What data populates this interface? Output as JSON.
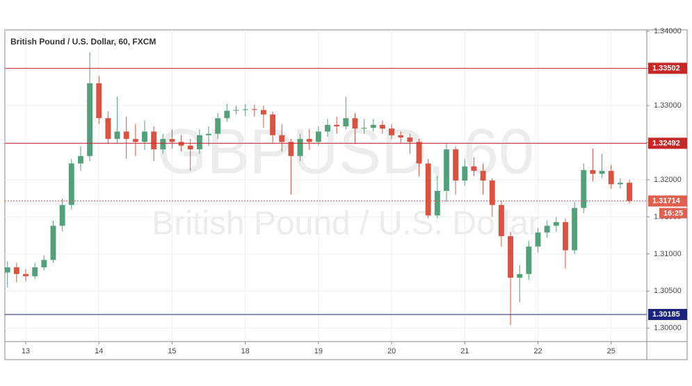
{
  "chart_data": {
    "type": "candlestick",
    "title": "British Pound / U.S. Dollar, 60, FXCM",
    "watermark": "GBPUSD, 60",
    "watermark_subtitle": "British Pound / U.S. Dollar",
    "grid": true,
    "xlim": [
      -6.85,
      203.7
    ],
    "xticks": [
      {
        "value": 0,
        "label": "13"
      },
      {
        "value": 24,
        "label": "14"
      },
      {
        "value": 48,
        "label": "15"
      },
      {
        "value": 72,
        "label": "18"
      },
      {
        "value": 96,
        "label": "19"
      },
      {
        "value": 120,
        "label": "20"
      },
      {
        "value": 144,
        "label": "21"
      },
      {
        "value": 168,
        "label": "22"
      },
      {
        "value": 192,
        "label": "25"
      }
    ],
    "ylim": [
      1.2982,
      1.3402
    ],
    "yticks": [
      {
        "value": 1.3,
        "label": "1.30000"
      },
      {
        "value": 1.305,
        "label": "1.30500"
      },
      {
        "value": 1.31,
        "label": "1.31000"
      },
      {
        "value": 1.315,
        "label": "1.31500"
      },
      {
        "value": 1.32,
        "label": "1.32000"
      },
      {
        "value": 1.325,
        "label": "1.32500"
      },
      {
        "value": 1.33,
        "label": "1.33000"
      },
      {
        "value": 1.335,
        "label": "1.33500"
      },
      {
        "value": 1.34,
        "label": "1.34000"
      }
    ],
    "levels": [
      {
        "value": 1.33502,
        "color": "#c62828"
      },
      {
        "value": 1.32492,
        "color": "#c62828"
      },
      {
        "value": 1.30185,
        "color": "#1a237e"
      }
    ],
    "current_price": {
      "value": 1.31714,
      "countdown": "16:25",
      "color": "#e06050"
    },
    "x": [
      -6,
      -3,
      0,
      3,
      6,
      9,
      12,
      15,
      18,
      21,
      24,
      27,
      30,
      33,
      36,
      39,
      42,
      45,
      48,
      51,
      54,
      57,
      60,
      63,
      66,
      69,
      72,
      75,
      78,
      81,
      84,
      87,
      90,
      93,
      96,
      99,
      102,
      105,
      108,
      111,
      114,
      117,
      120,
      123,
      126,
      129,
      132,
      135,
      138,
      141,
      144,
      147,
      150,
      153,
      156,
      159,
      162,
      165,
      168,
      171,
      174,
      177,
      180,
      183,
      186,
      189,
      192,
      195,
      198
    ],
    "series": [
      {
        "up_color": "#53a07a",
        "down_color": "#d75442",
        "open": [
          1.3075,
          1.3082,
          1.3073,
          1.307,
          1.3082,
          1.3092,
          1.3138,
          1.3166,
          1.3222,
          1.3232,
          1.333,
          1.3283,
          1.3255,
          1.3265,
          1.3255,
          1.3251,
          1.3265,
          1.3241,
          1.3255,
          1.3251,
          1.3246,
          1.3241,
          1.326,
          1.3262,
          1.3283,
          1.3293,
          1.3294,
          1.3295,
          1.3294,
          1.3288,
          1.326,
          1.3251,
          1.3232,
          1.3255,
          1.3251,
          1.3265,
          1.3274,
          1.3272,
          1.3283,
          1.3269,
          1.327,
          1.3274,
          1.3269,
          1.326,
          1.3257,
          1.3251,
          1.3222,
          1.3152,
          1.3185,
          1.3241,
          1.3199,
          1.3218,
          1.3212,
          1.3199,
          1.3166,
          1.3124,
          1.3068,
          1.3073,
          1.311,
          1.3129,
          1.3138,
          1.3143,
          1.3105,
          1.3162,
          1.3213,
          1.3208,
          1.3212,
          1.3194,
          1.3196
        ],
        "high": [
          1.309,
          1.3088,
          1.308,
          1.3088,
          1.3098,
          1.3145,
          1.3175,
          1.3228,
          1.3245,
          1.3372,
          1.334,
          1.3292,
          1.3312,
          1.3285,
          1.3275,
          1.328,
          1.3272,
          1.3262,
          1.3268,
          1.326,
          1.3255,
          1.3268,
          1.3272,
          1.329,
          1.3302,
          1.33,
          1.3302,
          1.3301,
          1.33,
          1.3292,
          1.3275,
          1.3255,
          1.3262,
          1.3268,
          1.3272,
          1.3282,
          1.3285,
          1.3312,
          1.329,
          1.3282,
          1.3282,
          1.328,
          1.3275,
          1.3265,
          1.3262,
          1.3255,
          1.3228,
          1.3205,
          1.325,
          1.3245,
          1.3228,
          1.323,
          1.3222,
          1.3202,
          1.3172,
          1.313,
          1.3085,
          1.3118,
          1.3135,
          1.3145,
          1.315,
          1.3148,
          1.317,
          1.3222,
          1.3242,
          1.3235,
          1.322,
          1.3202,
          1.32
        ],
        "low": [
          1.3055,
          1.3062,
          1.3063,
          1.3066,
          1.3078,
          1.3088,
          1.313,
          1.316,
          1.3212,
          1.3225,
          1.3275,
          1.3248,
          1.325,
          1.3228,
          1.3232,
          1.324,
          1.3225,
          1.3235,
          1.3242,
          1.3238,
          1.3212,
          1.3235,
          1.3245,
          1.3255,
          1.3278,
          1.3288,
          1.3286,
          1.3285,
          1.327,
          1.325,
          1.3238,
          1.318,
          1.3225,
          1.324,
          1.3246,
          1.3258,
          1.3262,
          1.3268,
          1.3248,
          1.3262,
          1.3265,
          1.3262,
          1.3255,
          1.325,
          1.3235,
          1.3205,
          1.3148,
          1.3148,
          1.317,
          1.318,
          1.3192,
          1.3205,
          1.318,
          1.315,
          1.311,
          1.3004,
          1.3035,
          1.3065,
          1.3102,
          1.3122,
          1.313,
          1.308,
          1.31,
          1.3155,
          1.3198,
          1.3202,
          1.3188,
          1.3188,
          1.3168
        ],
        "close": [
          1.3082,
          1.3073,
          1.307,
          1.3082,
          1.3092,
          1.3138,
          1.3166,
          1.3222,
          1.3232,
          1.333,
          1.3283,
          1.3255,
          1.3265,
          1.3255,
          1.3251,
          1.3265,
          1.3241,
          1.3255,
          1.3251,
          1.3246,
          1.3241,
          1.326,
          1.3262,
          1.3283,
          1.3293,
          1.3294,
          1.3295,
          1.3294,
          1.3288,
          1.326,
          1.3251,
          1.3232,
          1.3255,
          1.3251,
          1.3265,
          1.3274,
          1.3272,
          1.3283,
          1.3269,
          1.327,
          1.3274,
          1.3269,
          1.326,
          1.3257,
          1.3251,
          1.3222,
          1.3152,
          1.3185,
          1.3241,
          1.3199,
          1.3218,
          1.3212,
          1.3199,
          1.3166,
          1.3124,
          1.3068,
          1.3073,
          1.311,
          1.3129,
          1.3138,
          1.3143,
          1.3105,
          1.3162,
          1.3213,
          1.3208,
          1.3212,
          1.3194,
          1.3196,
          1.31714
        ]
      }
    ]
  }
}
